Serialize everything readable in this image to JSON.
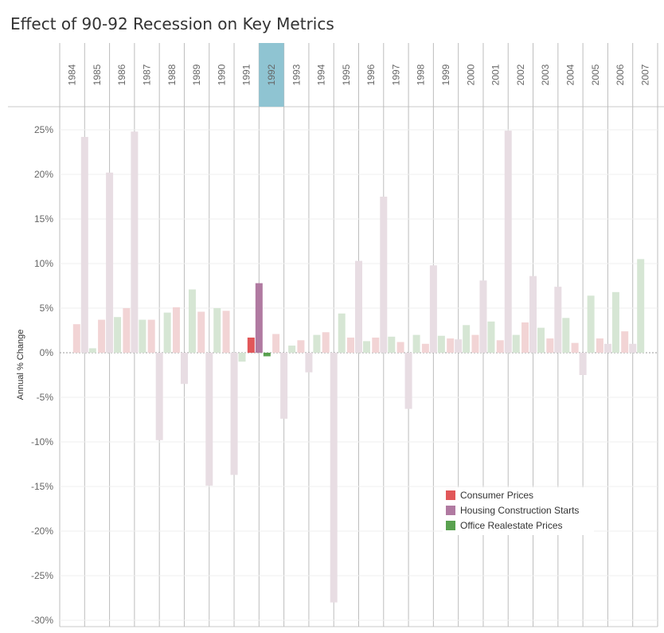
{
  "title": "Effect of 90-92 Recession on Key Metrics",
  "chart_data": {
    "type": "bar",
    "title": "Effect of 90-92 Recession on Key Metrics",
    "ylabel": "Annual % Change",
    "ylim": [
      -30,
      25
    ],
    "yticks": [
      "25%",
      "20%",
      "15%",
      "10%",
      "5%",
      "0%",
      "-5%",
      "-10%",
      "-15%",
      "-20%",
      "-25%",
      "-30%"
    ],
    "ytick_values": [
      25,
      20,
      15,
      10,
      5,
      0,
      -5,
      -10,
      -15,
      -20,
      -25,
      -30
    ],
    "categories": [
      "1984",
      "1985",
      "1986",
      "1987",
      "1988",
      "1989",
      "1990",
      "1991",
      "1992",
      "1993",
      "1994",
      "1995",
      "1996",
      "1997",
      "1998",
      "1999",
      "2000",
      "2001",
      "2002",
      "2003",
      "2004",
      "2005",
      "2006",
      "2007"
    ],
    "highlighted_category": "1992",
    "series": [
      {
        "name": "Consumer Prices",
        "color": "#e15759",
        "faded_color": "#f2d4d5",
        "values": [
          null,
          3.2,
          3.7,
          5.0,
          3.7,
          5.1,
          4.6,
          4.7,
          1.7,
          2.1,
          1.4,
          2.3,
          1.7,
          1.7,
          1.2,
          1.0,
          1.6,
          2.0,
          1.4,
          3.4,
          1.6,
          1.1,
          1.6,
          2.4
        ]
      },
      {
        "name": "Housing Construction Starts",
        "color": "#b07aa1",
        "faded_color": "#e8dde3",
        "values": [
          null,
          24.2,
          20.2,
          24.8,
          -9.8,
          -3.5,
          -14.9,
          -13.7,
          7.8,
          -7.4,
          -2.2,
          -28.0,
          10.3,
          17.5,
          -6.3,
          9.8,
          1.5,
          8.1,
          24.9,
          8.6,
          7.4,
          -2.5,
          1.0,
          1.0
        ]
      },
      {
        "name": "Office Realestate Prices",
        "color": "#59a14f",
        "faded_color": "#d6e6d4",
        "values": [
          null,
          0.5,
          4.0,
          3.7,
          4.5,
          7.1,
          5.0,
          -1.0,
          -0.4,
          0.8,
          2.0,
          4.4,
          1.3,
          1.8,
          2.0,
          1.9,
          3.1,
          3.5,
          2.0,
          2.8,
          3.9,
          6.4,
          6.8,
          10.5
        ]
      }
    ],
    "grid": true,
    "legend_position": "bottom-right"
  }
}
